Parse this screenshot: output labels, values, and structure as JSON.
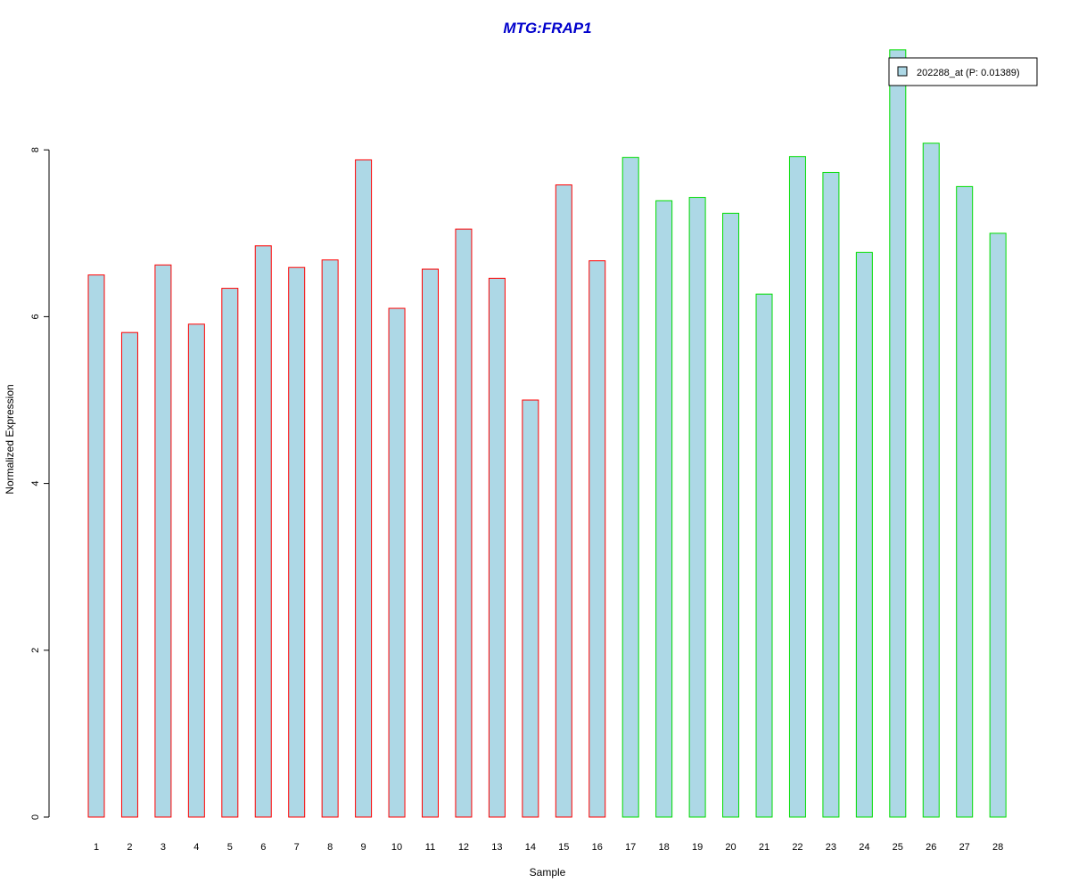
{
  "chart_data": {
    "type": "bar",
    "title": "MTG:FRAP1",
    "xlabel": "Sample",
    "ylabel": "Normalized Expression",
    "ylim": [
      0,
      9.2
    ],
    "y_ticks": [
      0,
      2,
      4,
      6,
      8
    ],
    "categories": [
      "1",
      "2",
      "3",
      "4",
      "5",
      "6",
      "7",
      "8",
      "9",
      "10",
      "11",
      "12",
      "13",
      "14",
      "15",
      "16",
      "17",
      "18",
      "19",
      "20",
      "21",
      "22",
      "23",
      "24",
      "25",
      "26",
      "27",
      "28"
    ],
    "series": [
      {
        "name": "202288_at (P: 0.01389)",
        "values": [
          6.5,
          5.81,
          6.62,
          5.91,
          6.34,
          6.85,
          6.59,
          6.68,
          7.88,
          6.1,
          6.57,
          7.05,
          6.46,
          5.0,
          7.58,
          6.67,
          7.91,
          7.39,
          7.43,
          7.24,
          6.27,
          7.92,
          7.73,
          6.77,
          9.2,
          8.08,
          7.56,
          7.0
        ]
      }
    ],
    "groups": [
      {
        "samples": [
          1,
          16
        ],
        "border_color": "#ff0000"
      },
      {
        "samples": [
          17,
          28
        ],
        "border_color": "#00dd00"
      }
    ],
    "grid": false,
    "legend_position": "top-right"
  },
  "colors": {
    "bar_fill": "#add8e6",
    "title": "#0000cc",
    "group1_border": "#ff0000",
    "group2_border": "#00dd00",
    "axis": "#000000"
  }
}
